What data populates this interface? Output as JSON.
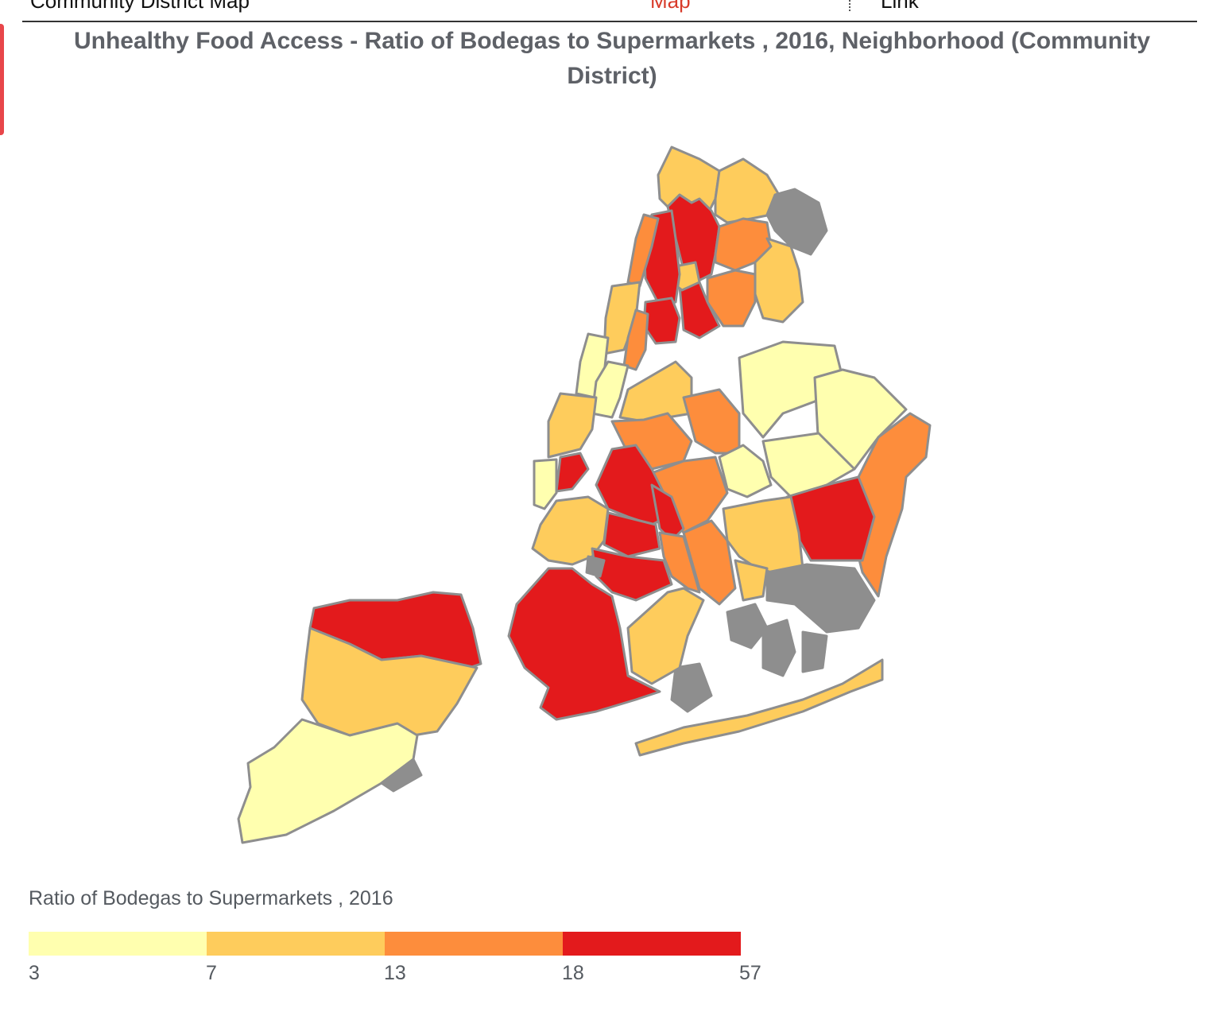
{
  "title": "Unhealthy Food Access - Ratio of Bodegas to Supermarkets , 2016, Neighborhood (Community District)",
  "top_strip": {
    "cut_text_left": "Community District Map",
    "cut_text_red": "Map",
    "cut_text_right": "Link"
  },
  "legend": {
    "title": "Ratio of Bodegas to Supermarkets , 2016",
    "breaks": [
      "3",
      "7",
      "13",
      "18",
      "57"
    ],
    "colors": [
      "#ffffaf",
      "#fecc5c",
      "#fd8d3c",
      "#e31a1c"
    ]
  },
  "chart_data": {
    "type": "choropleth",
    "title": "Unhealthy Food Access - Ratio of Bodegas to Supermarkets , 2016, Neighborhood (Community District)",
    "legend_title": "Ratio of Bodegas to Supermarkets , 2016",
    "classes": [
      {
        "range": [
          3,
          7
        ],
        "color": "#ffffaf"
      },
      {
        "range": [
          7,
          13
        ],
        "color": "#fecc5c"
      },
      {
        "range": [
          13,
          18
        ],
        "color": "#fd8d3c"
      },
      {
        "range": [
          18,
          57
        ],
        "color": "#e31a1c"
      }
    ],
    "no_data_color": "#8e8e8e",
    "legend_placement": "bottom-left"
  }
}
